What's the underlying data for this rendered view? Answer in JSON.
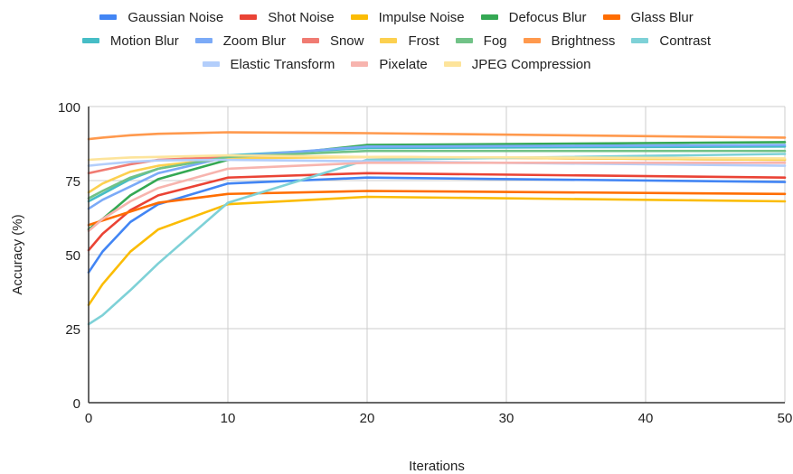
{
  "chart_data": {
    "type": "line",
    "title": "",
    "xlabel": "Iterations",
    "ylabel": "Accuracy (%)",
    "xlim": [
      0,
      50
    ],
    "ylim": [
      0,
      100
    ],
    "xticks": [
      0,
      10,
      20,
      30,
      40,
      50
    ],
    "yticks": [
      0,
      25,
      50,
      75,
      100
    ],
    "grid": true,
    "legend_position": "top",
    "x": [
      0,
      1,
      3,
      5,
      10,
      20,
      50
    ],
    "series": [
      {
        "name": "Gaussian Noise",
        "color": "#4285f4",
        "values": [
          44,
          51,
          61,
          67,
          74,
          76,
          74.5
        ]
      },
      {
        "name": "Shot Noise",
        "color": "#ea4335",
        "values": [
          51.5,
          57,
          65,
          70,
          76,
          77.5,
          76
        ]
      },
      {
        "name": "Impulse Noise",
        "color": "#fbbc04",
        "values": [
          33,
          40,
          51,
          58.5,
          67,
          69.5,
          68
        ]
      },
      {
        "name": "Defocus Blur",
        "color": "#34a853",
        "values": [
          58.5,
          62,
          70,
          75.5,
          82,
          87,
          88
        ]
      },
      {
        "name": "Glass Blur",
        "color": "#ff6d01",
        "values": [
          60,
          61.5,
          64.5,
          67.5,
          70.5,
          71.5,
          70.5
        ]
      },
      {
        "name": "Motion Blur",
        "color": "#46bdc6",
        "values": [
          68,
          70.5,
          75.5,
          79,
          83.5,
          86,
          86.5
        ]
      },
      {
        "name": "Zoom Blur",
        "color": "#7baaf7",
        "values": [
          65.5,
          68.5,
          73,
          77.5,
          83,
          86.5,
          87
        ]
      },
      {
        "name": "Snow",
        "color": "#f07b72",
        "values": [
          77.5,
          78.5,
          80.5,
          82,
          83,
          83,
          82
        ]
      },
      {
        "name": "Frost",
        "color": "#fcd04f",
        "values": [
          71,
          74,
          78,
          80,
          82.5,
          83,
          82
        ]
      },
      {
        "name": "Fog",
        "color": "#71c287",
        "values": [
          69,
          71.5,
          76,
          79,
          83,
          85,
          85
        ]
      },
      {
        "name": "Brightness",
        "color": "#ff994d",
        "values": [
          89,
          89.5,
          90.3,
          90.8,
          91.3,
          91,
          89.5
        ]
      },
      {
        "name": "Contrast",
        "color": "#7ed1d7",
        "values": [
          26.5,
          29.5,
          38,
          47,
          67.5,
          82,
          84
        ]
      },
      {
        "name": "Elastic Transform",
        "color": "#b3cefb",
        "values": [
          80,
          80.5,
          81.3,
          81.8,
          82,
          81.5,
          80
        ]
      },
      {
        "name": "Pixelate",
        "color": "#f7b4ae",
        "values": [
          58,
          62,
          68,
          72.5,
          79,
          81,
          81
        ]
      },
      {
        "name": "JPEG Compression",
        "color": "#fde49b",
        "values": [
          82,
          82.3,
          82.8,
          83,
          83.5,
          83,
          82.5
        ]
      }
    ]
  },
  "legend_rows": [
    [
      0,
      1,
      2,
      3,
      4
    ],
    [
      5,
      6,
      7,
      8,
      9,
      10,
      11
    ],
    [
      12,
      13,
      14
    ]
  ]
}
